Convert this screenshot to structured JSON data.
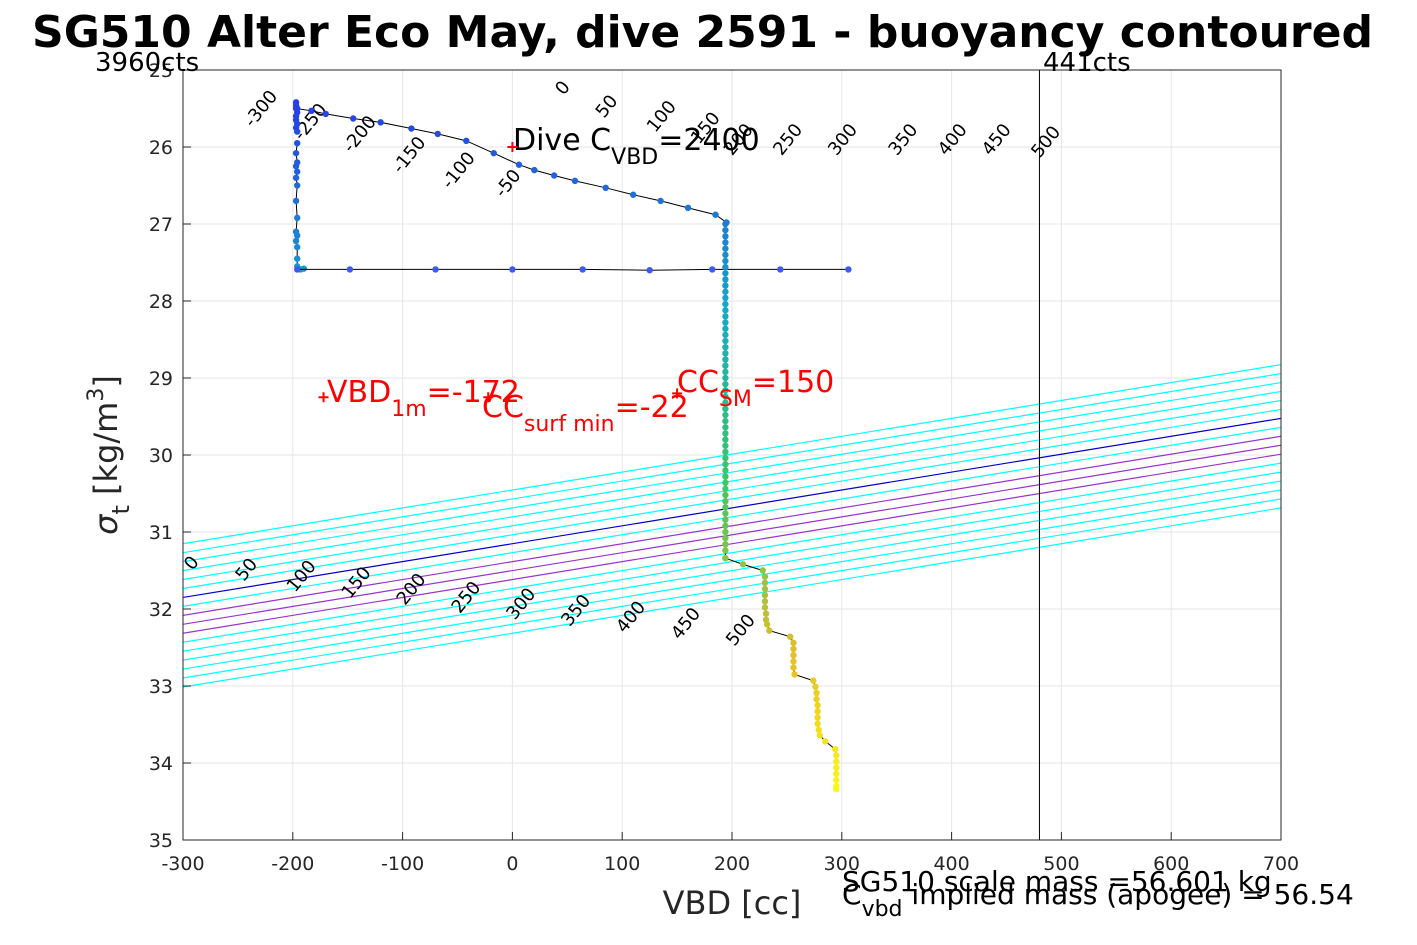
{
  "chart_data": {
    "type": "scatter",
    "title": "SG510 Alter Eco May, dive 2591 - buoyancy contoured",
    "xlabel": "VBD [cc]",
    "ylabel_main": "σ",
    "ylabel_sub": "t",
    "ylabel_unit_pre": " [kg/m",
    "ylabel_unit_sup": "3",
    "ylabel_unit_post": "]",
    "xlim": [
      -300,
      700
    ],
    "ylim": [
      25,
      35
    ],
    "y_reversed": true,
    "grid": true,
    "xticks": [
      -300,
      -200,
      -100,
      0,
      100,
      200,
      300,
      400,
      500,
      600,
      700
    ],
    "yticks": [
      25,
      26,
      27,
      28,
      29,
      30,
      31,
      32,
      33,
      34,
      35
    ],
    "contour_levels": [
      -300,
      -250,
      -200,
      -150,
      -100,
      -50,
      0,
      50,
      100,
      150,
      200,
      250,
      300,
      350,
      400,
      450,
      500
    ],
    "contour_line_color": "#00ffff",
    "contour_zero_color": "#0000cc",
    "contour_highlight_color": "#9933cc",
    "contour_highlight_levels": [
      100,
      150,
      200
    ],
    "min_counts_label": "3960cts",
    "max_counts_label": "441cts",
    "max_counts_vbd": 480,
    "dive_c_vbd": {
      "pre": "Dive C",
      "sub": "VBD",
      "post": "=2400",
      "x": 0,
      "y": 26.0
    },
    "vbd_1m": {
      "pre": "VBD",
      "sub": "1m",
      "post": "=-172",
      "x": -172,
      "y": 29.25
    },
    "cc_surf_min": {
      "pre": "CC",
      "sub": "surf min",
      "post": "=-22",
      "x": -22,
      "y": 29.25
    },
    "cc_sm": {
      "pre": "CC",
      "sub": "SM",
      "post": "=150",
      "x": 150,
      "y": 29.2
    },
    "annotation_color": "#ff0000",
    "footer_line1": "SG510 scale mass =56.601 kg",
    "footer_line2_pre": "C",
    "footer_line2_sub": "vbd",
    "footer_line2_post": " implied mass (apogee) = 56.54",
    "profile": {
      "descent": [
        [
          -197,
          25.42
        ],
        [
          -197,
          25.46
        ],
        [
          -196,
          25.5
        ],
        [
          -196,
          25.55
        ],
        [
          -197,
          25.6
        ],
        [
          -197,
          25.65
        ],
        [
          -196,
          25.7
        ],
        [
          -197,
          25.75
        ],
        [
          -196,
          25.8
        ]
      ],
      "shallow_branch": [
        [
          -197,
          25.5
        ],
        [
          -183,
          25.53
        ],
        [
          -170,
          25.57
        ],
        [
          -145,
          25.63
        ],
        [
          -120,
          25.68
        ],
        [
          -92,
          25.76
        ],
        [
          -68,
          25.83
        ],
        [
          -42,
          25.92
        ],
        [
          -17,
          26.08
        ],
        [
          6,
          26.23
        ],
        [
          20,
          26.3
        ],
        [
          38,
          26.37
        ],
        [
          57,
          26.44
        ],
        [
          85,
          26.53
        ],
        [
          110,
          26.62
        ],
        [
          135,
          26.7
        ],
        [
          160,
          26.79
        ],
        [
          185,
          26.88
        ],
        [
          195,
          26.98
        ]
      ],
      "left_column": [
        [
          -196,
          25.95
        ],
        [
          -197,
          26.08
        ],
        [
          -196,
          26.2
        ],
        [
          -197,
          26.25
        ],
        [
          -196,
          26.32
        ],
        [
          -197,
          26.4
        ],
        [
          -196,
          26.5
        ],
        [
          -197,
          26.7
        ],
        [
          -196,
          26.92
        ],
        [
          -197,
          27.1
        ],
        [
          -196,
          27.15
        ],
        [
          -197,
          27.22
        ],
        [
          -196,
          27.3
        ],
        [
          -196,
          27.45
        ],
        [
          -196,
          27.55
        ],
        [
          -193,
          27.59
        ],
        [
          -190,
          27.58
        ]
      ],
      "horizontal_scan": [
        [
          -196,
          27.59
        ],
        [
          -148,
          27.59
        ],
        [
          -70,
          27.59
        ],
        [
          0,
          27.59
        ],
        [
          64,
          27.59
        ],
        [
          125,
          27.6
        ],
        [
          182,
          27.59
        ],
        [
          244,
          27.59
        ],
        [
          306,
          27.59
        ]
      ],
      "main_column": [
        [
          194,
          27.0
        ],
        [
          194,
          27.08
        ],
        [
          194,
          27.16
        ],
        [
          194,
          27.24
        ],
        [
          194,
          27.32
        ],
        [
          194,
          27.4
        ],
        [
          194,
          27.48
        ],
        [
          194,
          27.56
        ],
        [
          194,
          27.64
        ],
        [
          194,
          27.72
        ],
        [
          194,
          27.8
        ],
        [
          194,
          27.88
        ],
        [
          194,
          27.96
        ],
        [
          194,
          28.04
        ],
        [
          194,
          28.12
        ],
        [
          194,
          28.2
        ],
        [
          194,
          28.28
        ],
        [
          194,
          28.36
        ],
        [
          194,
          28.44
        ],
        [
          194,
          28.52
        ],
        [
          194,
          28.6
        ],
        [
          194,
          28.68
        ],
        [
          194,
          28.76
        ],
        [
          194,
          28.84
        ],
        [
          194,
          28.92
        ],
        [
          194,
          29.0
        ],
        [
          194,
          29.08
        ],
        [
          194,
          29.16
        ],
        [
          194,
          29.24
        ],
        [
          194,
          29.32
        ],
        [
          194,
          29.4
        ],
        [
          194,
          29.48
        ],
        [
          194,
          29.56
        ],
        [
          194,
          29.64
        ],
        [
          194,
          29.72
        ],
        [
          194,
          29.8
        ],
        [
          194,
          29.88
        ],
        [
          194,
          29.96
        ],
        [
          194,
          30.04
        ],
        [
          194,
          30.12
        ],
        [
          194,
          30.2
        ],
        [
          194,
          30.28
        ],
        [
          194,
          30.36
        ],
        [
          194,
          30.44
        ],
        [
          194,
          30.52
        ],
        [
          194,
          30.6
        ],
        [
          194,
          30.68
        ],
        [
          194,
          30.76
        ],
        [
          194,
          30.84
        ],
        [
          194,
          30.92
        ],
        [
          194,
          31.0
        ],
        [
          194,
          31.08
        ],
        [
          194,
          31.16
        ],
        [
          194,
          31.24
        ],
        [
          194,
          31.34
        ]
      ],
      "deep_steps": [
        [
          210,
          31.42
        ],
        [
          228,
          31.5
        ],
        [
          230,
          31.58
        ],
        [
          230,
          31.66
        ],
        [
          230,
          31.74
        ],
        [
          230,
          31.82
        ],
        [
          230,
          31.9
        ],
        [
          230,
          31.98
        ],
        [
          231,
          32.06
        ],
        [
          231,
          32.14
        ],
        [
          232,
          32.2
        ],
        [
          234,
          32.28
        ],
        [
          253,
          32.36
        ],
        [
          256,
          32.44
        ],
        [
          256,
          32.52
        ],
        [
          256,
          32.6
        ],
        [
          256,
          32.68
        ],
        [
          256,
          32.76
        ],
        [
          257,
          32.85
        ],
        [
          274,
          32.93
        ],
        [
          276,
          33.01
        ],
        [
          277,
          33.09
        ],
        [
          277,
          33.17
        ],
        [
          278,
          33.25
        ],
        [
          278,
          33.33
        ],
        [
          278,
          33.41
        ],
        [
          278,
          33.49
        ],
        [
          279,
          33.57
        ],
        [
          280,
          33.64
        ],
        [
          285,
          33.72
        ],
        [
          294,
          33.82
        ],
        [
          295,
          33.9
        ],
        [
          295,
          33.98
        ],
        [
          295,
          34.06
        ],
        [
          295,
          34.14
        ],
        [
          295,
          34.22
        ],
        [
          295,
          34.3
        ],
        [
          295,
          34.34
        ]
      ]
    }
  }
}
